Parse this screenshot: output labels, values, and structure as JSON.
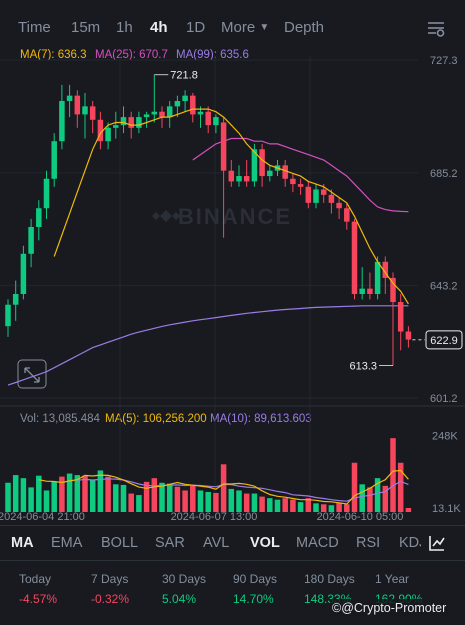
{
  "timeframes": [
    {
      "label": "Time",
      "active": false
    },
    {
      "label": "15m",
      "active": false
    },
    {
      "label": "1h",
      "active": false
    },
    {
      "label": "4h",
      "active": true
    },
    {
      "label": "1D",
      "active": false
    },
    {
      "label": "More",
      "active": false
    },
    {
      "label": "Depth",
      "active": false
    }
  ],
  "ma_legend": {
    "ma7": "MA(7): 636.3",
    "ma25": "MA(25): 670.7",
    "ma99": "MA(99): 635.6"
  },
  "vol_legend": {
    "vol": "Vol: 13,085.484",
    "ma5": "MA(5): 106,256.200",
    "ma10": "MA(10): 89,613.603"
  },
  "watermark": "BINANCE",
  "colors": {
    "up": "#0ecb81",
    "down": "#f6465d",
    "ma7": "#f0b90b",
    "ma25": "#d64fc0",
    "ma99": "#9b7ce6",
    "bg": "#181a20"
  },
  "indicator_tabs": [
    {
      "label": "MA",
      "active": true
    },
    {
      "label": "EMA",
      "active": false
    },
    {
      "label": "BOLL",
      "active": false
    },
    {
      "label": "SAR",
      "active": false
    },
    {
      "label": "AVL",
      "active": false
    },
    {
      "label": "VOL",
      "active": true
    },
    {
      "label": "MACD",
      "active": false
    },
    {
      "label": "RSI",
      "active": false
    },
    {
      "label": "KDJ",
      "active": false
    }
  ],
  "stats": [
    {
      "label": "Today",
      "value": "-4.57%",
      "dir": "neg"
    },
    {
      "label": "7 Days",
      "value": "-0.32%",
      "dir": "neg"
    },
    {
      "label": "30 Days",
      "value": "5.04%",
      "dir": "pos"
    },
    {
      "label": "90 Days",
      "value": "14.70%",
      "dir": "pos"
    },
    {
      "label": "180 Days",
      "value": "148.33%",
      "dir": "pos"
    },
    {
      "label": "1 Year",
      "value": "162.90%",
      "dir": "pos"
    }
  ],
  "credit": "@Crypto-Promoter",
  "chart_data": {
    "type": "candlestick",
    "price_axis": {
      "ticks": [
        "727.3",
        "685.2",
        "643.2",
        "601.2"
      ],
      "tick_values": [
        727.3,
        685.2,
        643.2,
        601.2
      ],
      "range": [
        601.2,
        727.3
      ]
    },
    "current_price": "622.9",
    "current_price_value": 622.9,
    "high_label": "721.8",
    "high_value": 721.8,
    "low_label": "613.3",
    "low_value": 613.3,
    "x_labels": [
      "2024-06-04 21:00",
      "2024-06-07 13:00",
      "2024-06-10 05:00"
    ],
    "volume_axis": {
      "ticks": [
        "248K",
        "13.1K"
      ],
      "tick_values": [
        248000,
        13100
      ],
      "range": [
        0,
        260000
      ]
    },
    "candles": [
      {
        "o": 628,
        "h": 638,
        "c": 636,
        "l": 624
      },
      {
        "o": 636,
        "h": 645,
        "c": 640,
        "l": 630
      },
      {
        "o": 640,
        "h": 658,
        "c": 655,
        "l": 638
      },
      {
        "o": 655,
        "h": 668,
        "c": 665,
        "l": 650
      },
      {
        "o": 665,
        "h": 675,
        "c": 672,
        "l": 660
      },
      {
        "o": 672,
        "h": 686,
        "c": 683,
        "l": 668
      },
      {
        "o": 683,
        "h": 700,
        "c": 697,
        "l": 680
      },
      {
        "o": 697,
        "h": 718,
        "c": 712,
        "l": 694
      },
      {
        "o": 712,
        "h": 718,
        "c": 714,
        "l": 706
      },
      {
        "o": 714,
        "h": 716,
        "c": 707,
        "l": 702
      },
      {
        "o": 707,
        "h": 715,
        "c": 710,
        "l": 698
      },
      {
        "o": 710,
        "h": 712,
        "c": 705,
        "l": 700
      },
      {
        "o": 705,
        "h": 708,
        "c": 697,
        "l": 694
      },
      {
        "o": 697,
        "h": 704,
        "c": 702,
        "l": 694
      },
      {
        "o": 702,
        "h": 708,
        "c": 703,
        "l": 698
      },
      {
        "o": 703,
        "h": 710,
        "c": 706,
        "l": 700
      },
      {
        "o": 706,
        "h": 708,
        "c": 702,
        "l": 698
      },
      {
        "o": 702,
        "h": 708,
        "c": 706,
        "l": 700
      },
      {
        "o": 706,
        "h": 708,
        "c": 707,
        "l": 702
      },
      {
        "o": 707,
        "h": 721.8,
        "c": 708,
        "l": 704
      },
      {
        "o": 708,
        "h": 710,
        "c": 706,
        "l": 702
      },
      {
        "o": 706,
        "h": 712,
        "c": 710,
        "l": 702
      },
      {
        "o": 710,
        "h": 714,
        "c": 712,
        "l": 706
      },
      {
        "o": 712,
        "h": 716,
        "c": 714,
        "l": 708
      },
      {
        "o": 714,
        "h": 715,
        "c": 707,
        "l": 704
      },
      {
        "o": 707,
        "h": 710,
        "c": 708,
        "l": 702
      },
      {
        "o": 708,
        "h": 710,
        "c": 703,
        "l": 700
      },
      {
        "o": 703,
        "h": 707,
        "c": 706,
        "l": 700
      },
      {
        "o": 704,
        "h": 706,
        "c": 686,
        "l": 661
      },
      {
        "o": 686,
        "h": 690,
        "c": 682,
        "l": 680
      },
      {
        "o": 682,
        "h": 688,
        "c": 684,
        "l": 680
      },
      {
        "o": 684,
        "h": 690,
        "c": 682,
        "l": 680
      },
      {
        "o": 682,
        "h": 696,
        "c": 694,
        "l": 680
      },
      {
        "o": 694,
        "h": 696,
        "c": 684,
        "l": 680
      },
      {
        "o": 684,
        "h": 688,
        "c": 686,
        "l": 682
      },
      {
        "o": 686,
        "h": 690,
        "c": 688,
        "l": 684
      },
      {
        "o": 688,
        "h": 690,
        "c": 683,
        "l": 680
      },
      {
        "o": 683,
        "h": 685,
        "c": 681,
        "l": 678
      },
      {
        "o": 681,
        "h": 683,
        "c": 680,
        "l": 677
      },
      {
        "o": 680,
        "h": 682,
        "c": 674,
        "l": 672
      },
      {
        "o": 674,
        "h": 681,
        "c": 679,
        "l": 672
      },
      {
        "o": 679,
        "h": 681,
        "c": 677,
        "l": 674
      },
      {
        "o": 677,
        "h": 679,
        "c": 674,
        "l": 670
      },
      {
        "o": 674,
        "h": 676,
        "c": 672,
        "l": 668
      },
      {
        "o": 672,
        "h": 674,
        "c": 667,
        "l": 664
      },
      {
        "o": 667,
        "h": 668,
        "c": 640,
        "l": 638
      },
      {
        "o": 640,
        "h": 650,
        "c": 642,
        "l": 638
      },
      {
        "o": 642,
        "h": 648,
        "c": 640,
        "l": 638
      },
      {
        "o": 640,
        "h": 654,
        "c": 652,
        "l": 638
      },
      {
        "o": 652,
        "h": 654,
        "c": 646,
        "l": 640
      },
      {
        "o": 646,
        "h": 648,
        "c": 637,
        "l": 613.3
      },
      {
        "o": 637,
        "h": 640,
        "c": 626,
        "l": 619
      },
      {
        "o": 626,
        "h": 628,
        "c": 623,
        "l": 620
      }
    ],
    "volumes": [
      {
        "v": 95000,
        "up": true
      },
      {
        "v": 120000,
        "up": true
      },
      {
        "v": 110000,
        "up": true
      },
      {
        "v": 80000,
        "up": true
      },
      {
        "v": 118000,
        "up": true
      },
      {
        "v": 70000,
        "up": true
      },
      {
        "v": 98000,
        "up": true
      },
      {
        "v": 115000,
        "up": false
      },
      {
        "v": 125000,
        "up": true
      },
      {
        "v": 120000,
        "up": true
      },
      {
        "v": 118000,
        "up": false
      },
      {
        "v": 105000,
        "up": true
      },
      {
        "v": 135000,
        "up": true
      },
      {
        "v": 115000,
        "up": false
      },
      {
        "v": 90000,
        "up": true
      },
      {
        "v": 88000,
        "up": true
      },
      {
        "v": 60000,
        "up": false
      },
      {
        "v": 55000,
        "up": true
      },
      {
        "v": 98000,
        "up": false
      },
      {
        "v": 110000,
        "up": false
      },
      {
        "v": 95000,
        "up": true
      },
      {
        "v": 92000,
        "up": true
      },
      {
        "v": 82000,
        "up": false
      },
      {
        "v": 70000,
        "up": false
      },
      {
        "v": 85000,
        "up": false
      },
      {
        "v": 70000,
        "up": true
      },
      {
        "v": 65000,
        "up": true
      },
      {
        "v": 62000,
        "up": false
      },
      {
        "v": 155000,
        "up": false
      },
      {
        "v": 75000,
        "up": true
      },
      {
        "v": 70000,
        "up": true
      },
      {
        "v": 60000,
        "up": false
      },
      {
        "v": 60000,
        "up": true
      },
      {
        "v": 50000,
        "up": false
      },
      {
        "v": 45000,
        "up": true
      },
      {
        "v": 40000,
        "up": true
      },
      {
        "v": 45000,
        "up": false
      },
      {
        "v": 40000,
        "up": false
      },
      {
        "v": 32000,
        "up": true
      },
      {
        "v": 45000,
        "up": false
      },
      {
        "v": 28000,
        "up": true
      },
      {
        "v": 25000,
        "up": false
      },
      {
        "v": 22000,
        "up": true
      },
      {
        "v": 30000,
        "up": false
      },
      {
        "v": 25000,
        "up": false
      },
      {
        "v": 160000,
        "up": false
      },
      {
        "v": 90000,
        "up": true
      },
      {
        "v": 80000,
        "up": false
      },
      {
        "v": 110000,
        "up": true
      },
      {
        "v": 85000,
        "up": false
      },
      {
        "v": 240000,
        "up": false
      },
      {
        "v": 160000,
        "up": false
      },
      {
        "v": 13000,
        "up": false
      }
    ],
    "ma7": [
      null,
      null,
      null,
      null,
      null,
      null,
      654,
      662,
      670,
      678,
      686,
      694,
      700,
      703,
      704,
      704,
      703,
      703,
      704,
      705,
      706,
      706,
      707,
      708,
      709,
      709,
      709,
      708,
      706,
      703,
      700,
      696,
      693,
      690,
      688,
      687,
      686,
      685,
      684,
      682,
      681,
      680,
      678,
      676,
      674,
      669,
      663,
      657,
      652,
      648,
      644,
      641,
      636.3
    ],
    "ma25": [
      null,
      null,
      null,
      null,
      null,
      null,
      null,
      null,
      null,
      null,
      null,
      null,
      null,
      null,
      null,
      null,
      null,
      null,
      null,
      null,
      null,
      null,
      null,
      null,
      690,
      692,
      694,
      696,
      697,
      698,
      698,
      698,
      697,
      697,
      696,
      696,
      695,
      694,
      693,
      692,
      691,
      690,
      688,
      686,
      684,
      681,
      678,
      675,
      672.5,
      671.5,
      671,
      670.8,
      670.7
    ],
    "ma99": [
      606,
      607,
      608,
      609,
      610,
      611,
      612.5,
      614,
      615.5,
      617,
      618.5,
      620,
      621,
      622,
      623,
      624,
      625,
      625.8,
      626.5,
      627.2,
      627.9,
      628.5,
      629,
      629.5,
      630,
      630.4,
      630.8,
      631.2,
      631.6,
      632,
      632.4,
      632.8,
      633.1,
      633.4,
      633.7,
      634,
      634.2,
      634.4,
      634.6,
      634.8,
      635,
      635.1,
      635.2,
      635.3,
      635.4,
      635.5,
      635.6,
      635.6,
      635.6,
      635.6,
      635.6,
      635.6,
      635.6
    ],
    "vol_ma5": [
      null,
      null,
      null,
      null,
      105000,
      100000,
      99000,
      96000,
      101000,
      105000,
      119000,
      117000,
      120000,
      119000,
      113000,
      104000,
      92000,
      81000,
      77000,
      82000,
      84000,
      90000,
      96000,
      90000,
      87000,
      84000,
      81000,
      74000,
      91000,
      91000,
      93000,
      90000,
      84000,
      69000,
      57000,
      51000,
      48000,
      44000,
      40000,
      40000,
      38000,
      34000,
      33000,
      30000,
      26000,
      53000,
      65000,
      77000,
      93000,
      105000,
      133000,
      135000,
      106256
    ],
    "vol_ma10": [
      null,
      null,
      null,
      null,
      null,
      null,
      null,
      null,
      null,
      103000,
      106000,
      104000,
      106000,
      108000,
      107000,
      104000,
      98000,
      91000,
      86000,
      85000,
      86000,
      87000,
      88000,
      86000,
      87000,
      86000,
      84000,
      82000,
      90000,
      89000,
      84000,
      81000,
      79000,
      77000,
      72000,
      67000,
      63000,
      56000,
      54000,
      52000,
      47000,
      44000,
      40000,
      37000,
      35000,
      45000,
      51000,
      54000,
      61000,
      66000,
      86000,
      99000,
      89614
    ]
  }
}
